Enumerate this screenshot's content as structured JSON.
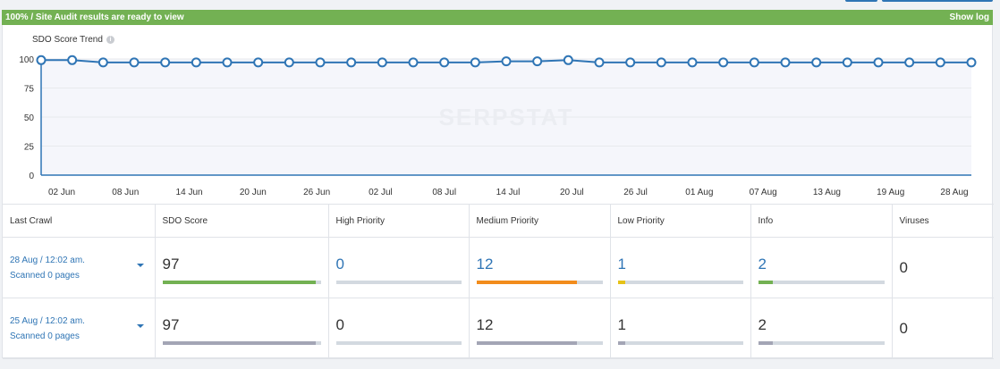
{
  "banner": {
    "status": "100% / Site Audit results are ready to view",
    "show_log": "Show log"
  },
  "chart": {
    "title": "SDO Score Trend",
    "watermark": "SERPSTAT"
  },
  "chart_data": {
    "type": "line",
    "title": "SDO Score Trend",
    "xlabel": "",
    "ylabel": "",
    "ylim": [
      0,
      100
    ],
    "yticks": [
      0,
      25,
      50,
      75,
      100
    ],
    "x_tick_labels": [
      "02 Jun",
      "08 Jun",
      "14 Jun",
      "20 Jun",
      "26 Jun",
      "02 Jul",
      "08 Jul",
      "14 Jul",
      "20 Jul",
      "26 Jul",
      "01 Aug",
      "07 Aug",
      "13 Aug",
      "19 Aug",
      "28 Aug"
    ],
    "grid": true,
    "colors": {
      "line": "#2f75b5",
      "grid": "#e8eaed",
      "plot_bg": "#f5f6fb"
    },
    "series": [
      {
        "values": [
          99,
          99,
          97,
          97,
          97,
          97,
          97,
          97,
          97,
          97,
          97,
          97,
          97,
          97,
          97,
          98,
          98,
          99,
          97,
          97,
          97,
          97,
          97,
          97,
          97,
          97,
          97,
          97,
          97,
          97,
          97
        ]
      }
    ]
  },
  "table": {
    "headers": [
      "Last Crawl",
      "SDO Score",
      "High Priority",
      "Medium Priority",
      "Low Priority",
      "Info",
      "Viruses"
    ],
    "rows": [
      {
        "date": "28 Aug / 12:02 am.",
        "scanned": "Scanned 0 pages",
        "sdo": {
          "value": "97",
          "fill": 0.97,
          "color": "#73b153"
        },
        "high": {
          "value": "0",
          "fill": 0.0,
          "color": "#2f75b5"
        },
        "medium": {
          "value": "12",
          "fill": 0.8,
          "color": "#f28c1c"
        },
        "low": {
          "value": "1",
          "fill": 0.06,
          "color": "#e6c217"
        },
        "info": {
          "value": "2",
          "fill": 0.12,
          "color": "#73b153"
        },
        "viruses": "0",
        "active": true
      },
      {
        "date": "25 Aug / 12:02 am.",
        "scanned": "Scanned 0 pages",
        "sdo": {
          "value": "97",
          "fill": 0.97,
          "color": "#a3a5b5"
        },
        "high": {
          "value": "0",
          "fill": 0.0,
          "color": "#a3a5b5"
        },
        "medium": {
          "value": "12",
          "fill": 0.8,
          "color": "#a3a5b5"
        },
        "low": {
          "value": "1",
          "fill": 0.06,
          "color": "#a3a5b5"
        },
        "info": {
          "value": "2",
          "fill": 0.12,
          "color": "#a3a5b5"
        },
        "viruses": "0",
        "active": false
      }
    ]
  }
}
